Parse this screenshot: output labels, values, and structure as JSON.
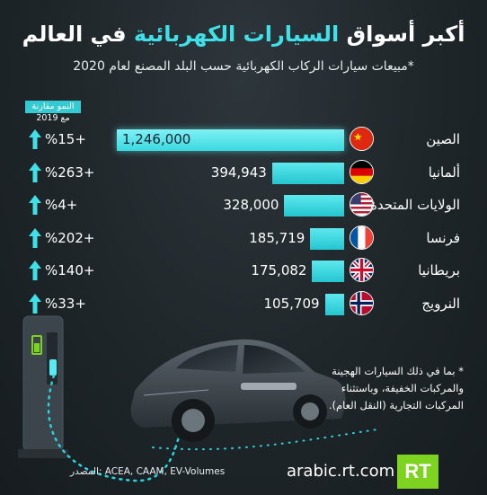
{
  "title_pre": "أكبر أسواق ",
  "title_accent": "السيارات الكهربائية",
  "title_post": " في العالم",
  "subtitle": "*مبيعات سيارات الركاب الكهربائية حسب البلد المصنع لعام 2020",
  "growth_header_line1": "النمو مقارنة",
  "growth_header_line2": "مع 2019",
  "note": "* بما في ذلك السيارات الهجينة والمركبات الخفيفة، وباستثناء المركبات التجارية (النقل العام).",
  "source": "المصدر: ACEA, CAAM, EV-Volumes",
  "website": "arabic.rt.com",
  "logo": "RT",
  "colors": {
    "accent": "#3fe0e8",
    "bar": "#2ccdd6",
    "background": "#1f262a",
    "logo": "#7ed321"
  },
  "chart_data": {
    "type": "bar",
    "orientation": "horizontal",
    "categories": [
      "الصين",
      "ألمانيا",
      "الولايات المتحدة",
      "فرنسا",
      "بريطانيا",
      "النرويج"
    ],
    "values": [
      1246000,
      394943,
      328000,
      185719,
      175082,
      105709
    ],
    "value_labels": [
      "1,246,000",
      "394,943",
      "328,000",
      "185,719",
      "175,082",
      "105,709"
    ],
    "growth_labels": [
      "%15+",
      "%263+",
      "%4+",
      "%202+",
      "%140+",
      "%33+"
    ],
    "flags": [
      "china-flag-icon",
      "germany-flag-icon",
      "usa-flag-icon",
      "france-flag-icon",
      "uk-flag-icon",
      "norway-flag-icon"
    ],
    "xlim": [
      0,
      1246000
    ]
  }
}
